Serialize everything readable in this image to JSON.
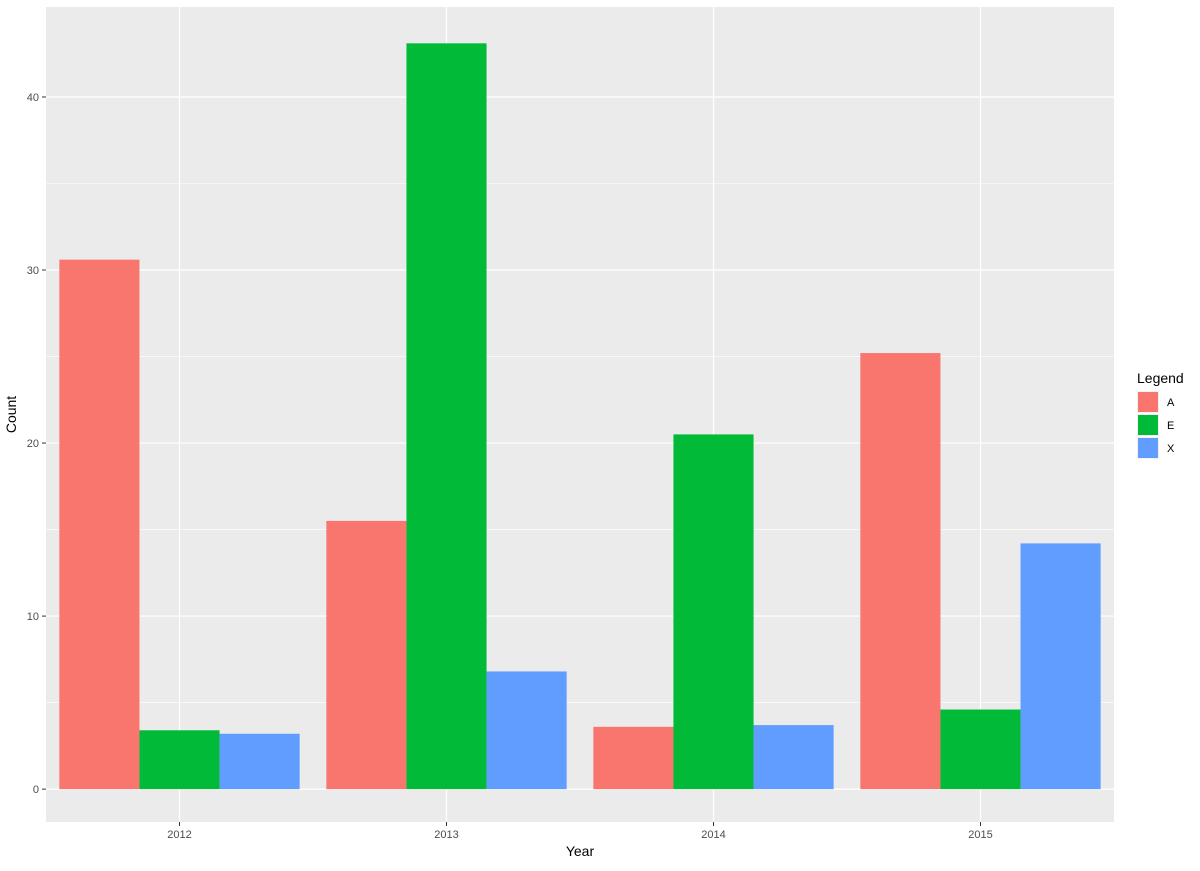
{
  "chart_data": {
    "type": "bar",
    "categories": [
      "2012",
      "2013",
      "2014",
      "2015"
    ],
    "series": [
      {
        "name": "A",
        "color": "#F8766D",
        "values": [
          30.6,
          15.5,
          3.6,
          25.2
        ]
      },
      {
        "name": "E",
        "color": "#00BA38",
        "values": [
          3.4,
          43.1,
          20.5,
          4.6
        ]
      },
      {
        "name": "X",
        "color": "#619CFF",
        "values": [
          3.2,
          6.8,
          3.7,
          14.2
        ]
      }
    ],
    "xlabel": "Year",
    "ylabel": "Count",
    "ylim": [
      -1.9,
      45.2
    ],
    "yticks": [
      0,
      10,
      20,
      30,
      40
    ],
    "grid": true,
    "legend": {
      "title": "Legend",
      "position": "right"
    },
    "panel_background": "#EBEBEB",
    "grid_color": "#FFFFFF"
  }
}
